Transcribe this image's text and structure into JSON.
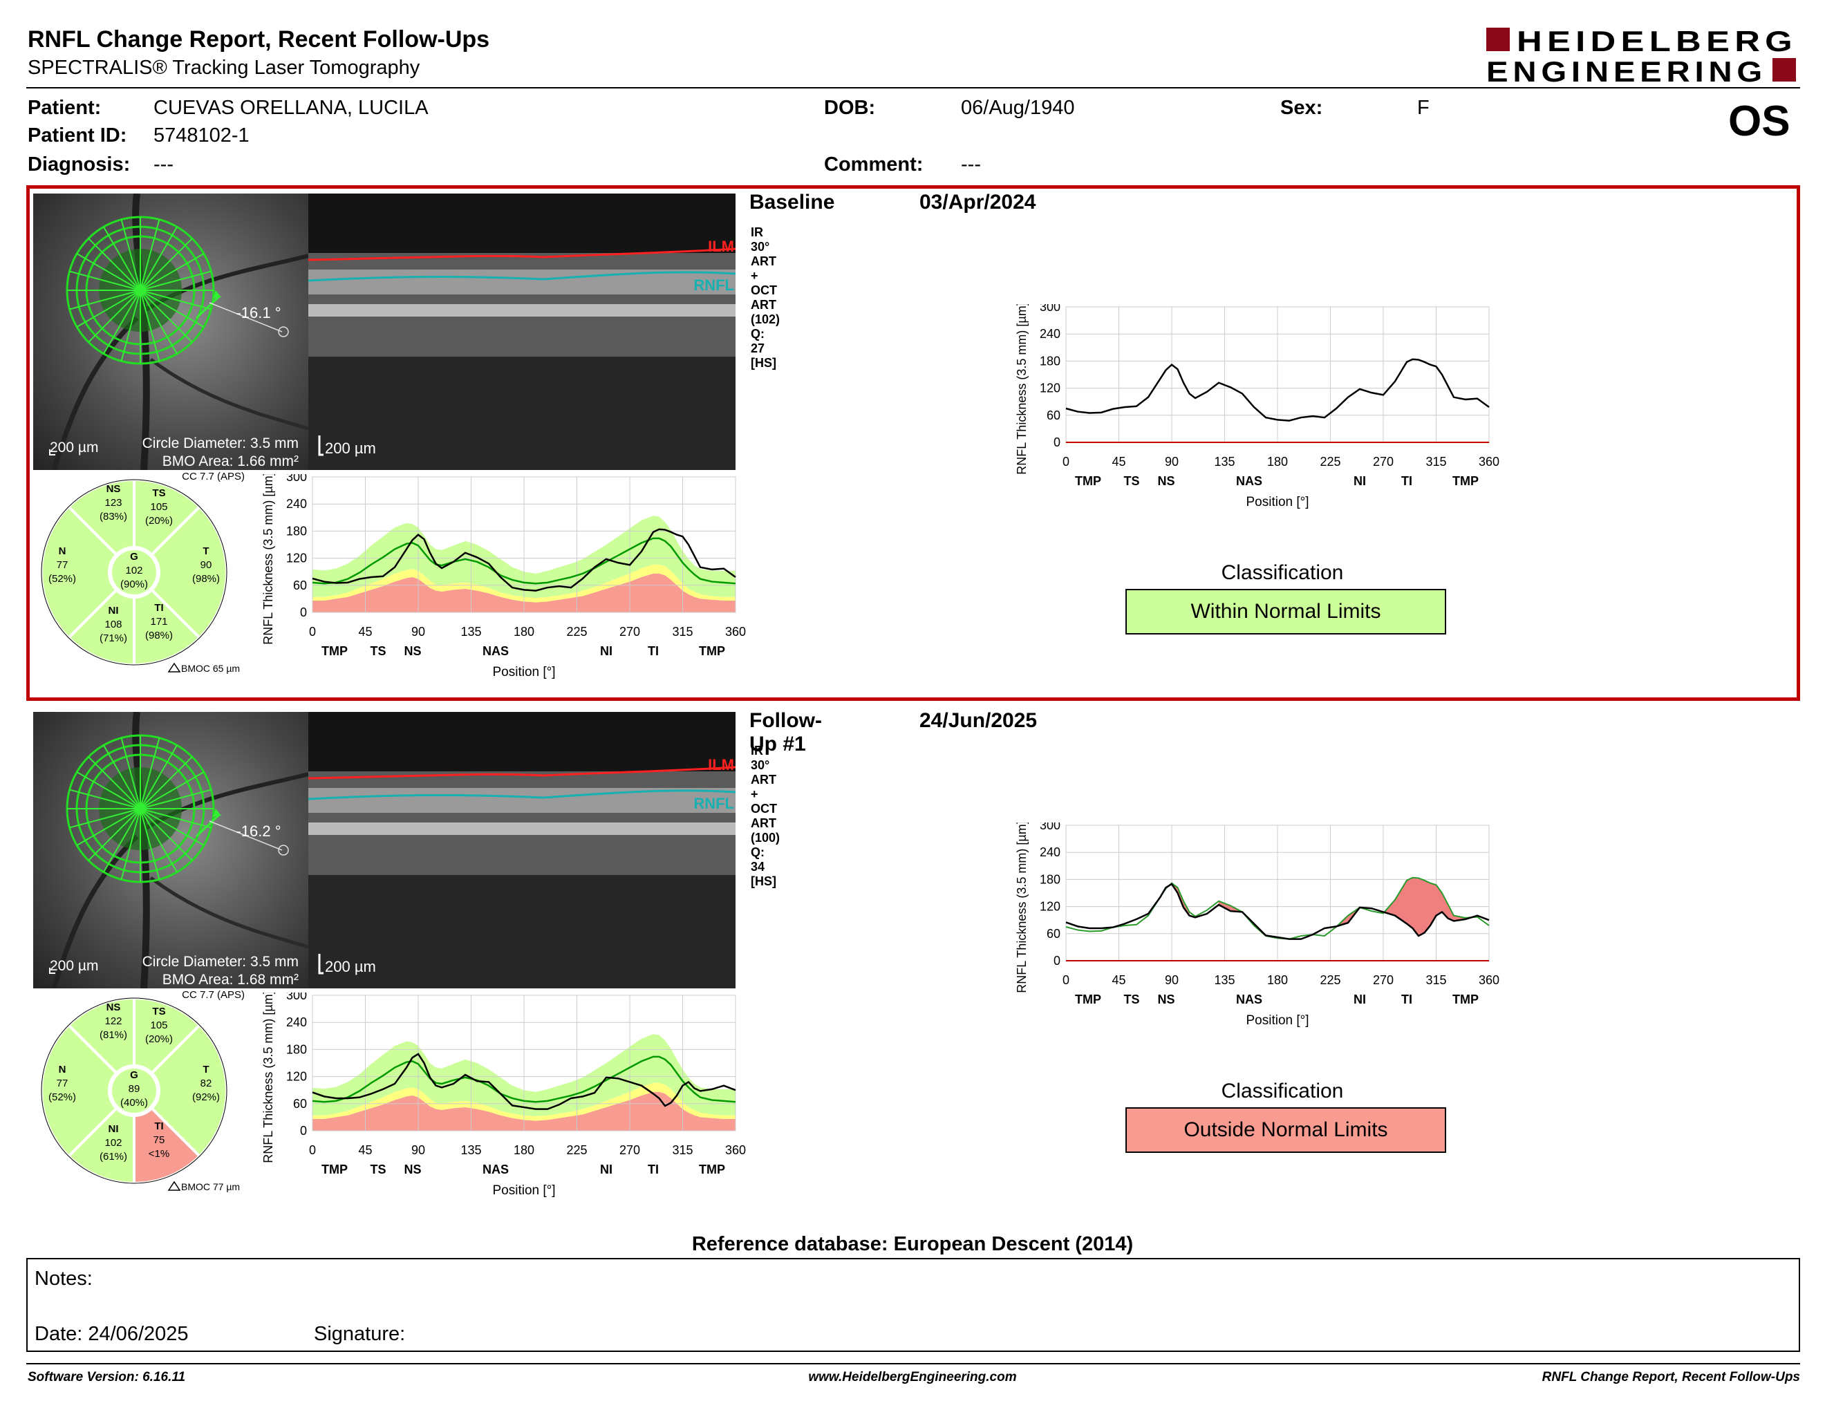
{
  "header": {
    "title": "RNFL Change Report, Recent Follow-Ups",
    "subtitle": "SPECTRALIS® Tracking Laser Tomography",
    "logo_line1": "HEIDELBERG",
    "logo_line2": "ENGINEERING"
  },
  "patient": {
    "name_label": "Patient:",
    "name": "CUEVAS ORELLANA, LUCILA",
    "id_label": "Patient ID:",
    "id": "5748102-1",
    "diagnosis_label": "Diagnosis:",
    "diagnosis": "---",
    "dob_label": "DOB:",
    "dob": "06/Aug/1940",
    "sex_label": "Sex:",
    "sex": "F",
    "comment_label": "Comment:",
    "comment": "---",
    "eye": "OS"
  },
  "exams": [
    {
      "title": "Baseline",
      "date": "03/Apr/2024",
      "acquisition": "IR 30° ART + OCT ART (102) Q: 27 [HS]",
      "fundus": {
        "scale": "200 µm",
        "angle": "-16.1 °",
        "circle_diameter": "Circle Diameter: 3.5 mm",
        "bmo_area": "BMO Area: 1.66 mm²"
      },
      "bscan": {
        "scale": "200 µm",
        "ilm": "ILM",
        "rnfl": "RNFL"
      },
      "sectors": {
        "cc": "CC 7.7 (APS)",
        "bmoc": "BMOC 65 µm",
        "NS": {
          "label": "NS",
          "value": "123",
          "pct": "(83%)",
          "status": "normal"
        },
        "TS": {
          "label": "TS",
          "value": "105",
          "pct": "(20%)",
          "status": "normal"
        },
        "N": {
          "label": "N",
          "value": "77",
          "pct": "(52%)",
          "status": "normal"
        },
        "G": {
          "label": "G",
          "value": "102",
          "pct": "(90%)",
          "status": "normal"
        },
        "T": {
          "label": "T",
          "value": "90",
          "pct": "(98%)",
          "status": "normal"
        },
        "NI": {
          "label": "NI",
          "value": "108",
          "pct": "(71%)",
          "status": "normal"
        },
        "TI": {
          "label": "TI",
          "value": "171",
          "pct": "(98%)",
          "status": "normal"
        }
      },
      "classification_title": "Classification",
      "classification": "Within Normal Limits",
      "classification_color": "#ccff99"
    },
    {
      "title": "Follow-Up #1",
      "date": "24/Jun/2025",
      "acquisition": "IR 30° ART + OCT ART (100) Q: 34 [HS]",
      "fundus": {
        "scale": "200 µm",
        "angle": "-16.2 °",
        "circle_diameter": "Circle Diameter: 3.5 mm",
        "bmo_area": "BMO Area: 1.68 mm²"
      },
      "bscan": {
        "scale": "200 µm",
        "ilm": "ILM",
        "rnfl": "RNFL"
      },
      "sectors": {
        "cc": "CC 7.7 (APS)",
        "bmoc": "BMOC 77 µm",
        "NS": {
          "label": "NS",
          "value": "122",
          "pct": "(81%)",
          "status": "normal"
        },
        "TS": {
          "label": "TS",
          "value": "105",
          "pct": "(20%)",
          "status": "normal"
        },
        "N": {
          "label": "N",
          "value": "77",
          "pct": "(52%)",
          "status": "normal"
        },
        "G": {
          "label": "G",
          "value": "89",
          "pct": "(40%)",
          "status": "normal"
        },
        "T": {
          "label": "T",
          "value": "82",
          "pct": "(92%)",
          "status": "normal"
        },
        "NI": {
          "label": "NI",
          "value": "102",
          "pct": "(61%)",
          "status": "normal"
        },
        "TI": {
          "label": "TI",
          "value": "75",
          "pct": "<1%",
          "status": "outside"
        }
      },
      "classification_title": "Classification",
      "classification": "Outside Normal Limits",
      "classification_color": "#f89b90"
    }
  ],
  "colors": {
    "normal": "#ccff99",
    "borderline": "#ffff80",
    "outside": "#f89b90",
    "frame": "#c00000",
    "measured": "#000000",
    "mean": "#009900"
  },
  "chart_data": [
    {
      "type": "line",
      "xlabel": "Position [°]",
      "ylabel": "RNFL Thickness (3.5 mm) [µm]",
      "xlim": [
        0,
        360
      ],
      "ylim": [
        0,
        300
      ],
      "xticks": [
        "0",
        "45",
        "90",
        "135",
        "180",
        "225",
        "270",
        "315",
        "360"
      ],
      "yticks": [
        "0",
        "60",
        "120",
        "180",
        "240",
        "300"
      ],
      "sector_labels": [
        "TMP",
        "TS",
        "NS",
        "NAS",
        "NI",
        "TI",
        "TMP"
      ],
      "x": [
        0,
        10,
        20,
        30,
        40,
        50,
        60,
        70,
        80,
        85,
        90,
        95,
        100,
        105,
        110,
        120,
        130,
        140,
        150,
        160,
        170,
        180,
        190,
        200,
        210,
        220,
        230,
        240,
        250,
        260,
        270,
        280,
        290,
        295,
        300,
        305,
        310,
        315,
        320,
        325,
        330,
        340,
        350,
        360
      ],
      "series": [
        {
          "values": [
            75,
            68,
            65,
            66,
            74,
            78,
            80,
            100,
            140,
            160,
            172,
            162,
            132,
            108,
            98,
            112,
            132,
            122,
            108,
            78,
            55,
            50,
            48,
            55,
            58,
            55,
            75,
            100,
            118,
            110,
            105,
            135,
            178,
            184,
            183,
            178,
            172,
            168,
            150,
            125,
            100,
            95,
            97,
            78
          ]
        }
      ],
      "normal_band": {
        "lower": [
          44,
          44,
          48,
          55,
          65,
          78,
          92,
          110,
          125,
          130,
          125,
          110,
          95,
          86,
          84,
          88,
          92,
          86,
          76,
          62,
          54,
          50,
          48,
          50,
          55,
          58,
          64,
          76,
          90,
          104,
          118,
          134,
          148,
          152,
          148,
          138,
          120,
          100,
          84,
          72,
          60,
          54,
          50,
          48
        ],
        "upper": [
          95,
          93,
          97,
          108,
          125,
          148,
          168,
          188,
          198,
          196,
          188,
          170,
          150,
          140,
          138,
          148,
          158,
          150,
          136,
          118,
          100,
          90,
          86,
          92,
          100,
          108,
          118,
          134,
          150,
          168,
          186,
          204,
          214,
          212,
          200,
          182,
          158,
          136,
          118,
          104,
          96,
          92,
          92,
          92
        ]
      },
      "mean": [
        66,
        64,
        66,
        74,
        88,
        106,
        122,
        140,
        152,
        154,
        148,
        132,
        116,
        106,
        104,
        112,
        118,
        112,
        100,
        82,
        72,
        66,
        64,
        66,
        72,
        78,
        86,
        98,
        112,
        126,
        140,
        154,
        164,
        164,
        158,
        146,
        128,
        110,
        96,
        84,
        74,
        68,
        66,
        64
      ],
      "borderline_upper": [
        34,
        34,
        38,
        44,
        54,
        64,
        74,
        86,
        94,
        96,
        92,
        82,
        70,
        62,
        60,
        64,
        66,
        62,
        54,
        44,
        38,
        34,
        32,
        34,
        38,
        42,
        48,
        56,
        66,
        76,
        86,
        98,
        106,
        106,
        102,
        92,
        78,
        64,
        52,
        46,
        40,
        36,
        34,
        34
      ],
      "outside_upper": [
        26,
        26,
        30,
        34,
        42,
        50,
        58,
        68,
        76,
        78,
        74,
        64,
        54,
        48,
        46,
        50,
        52,
        48,
        42,
        34,
        28,
        24,
        22,
        24,
        28,
        32,
        36,
        44,
        52,
        60,
        68,
        78,
        86,
        86,
        82,
        72,
        60,
        48,
        40,
        34,
        30,
        28,
        26,
        26
      ]
    },
    {
      "type": "line",
      "xlabel": "Position [°]",
      "ylabel": "RNFL Thickness (3.5 mm) [µm]",
      "xlim": [
        0,
        360
      ],
      "ylim": [
        0,
        300
      ],
      "xticks": [
        "0",
        "45",
        "90",
        "135",
        "180",
        "225",
        "270",
        "315",
        "360"
      ],
      "yticks": [
        "0",
        "60",
        "120",
        "180",
        "240",
        "300"
      ],
      "sector_labels": [
        "TMP",
        "TS",
        "NS",
        "NAS",
        "NI",
        "TI",
        "TMP"
      ],
      "x": [
        0,
        10,
        20,
        30,
        40,
        50,
        60,
        70,
        80,
        85,
        90,
        95,
        100,
        105,
        110,
        120,
        130,
        140,
        150,
        160,
        170,
        180,
        190,
        200,
        210,
        220,
        230,
        240,
        250,
        260,
        270,
        280,
        290,
        295,
        300,
        305,
        310,
        315,
        320,
        325,
        330,
        340,
        350,
        360
      ],
      "series": [
        {
          "values": [
            85,
            76,
            72,
            72,
            74,
            82,
            92,
            104,
            140,
            162,
            170,
            150,
            118,
            100,
            96,
            104,
            124,
            110,
            108,
            82,
            56,
            52,
            48,
            48,
            58,
            72,
            76,
            84,
            118,
            116,
            108,
            100,
            82,
            72,
            55,
            62,
            78,
            100,
            108,
            94,
            88,
            92,
            100,
            90
          ]
        }
      ],
      "normal_band": {
        "lower": [
          44,
          44,
          48,
          55,
          65,
          78,
          92,
          110,
          125,
          130,
          125,
          110,
          95,
          86,
          84,
          88,
          92,
          86,
          76,
          62,
          54,
          50,
          48,
          50,
          55,
          58,
          64,
          76,
          90,
          104,
          118,
          134,
          148,
          152,
          148,
          138,
          120,
          100,
          84,
          72,
          60,
          54,
          50,
          48
        ],
        "upper": [
          95,
          93,
          97,
          108,
          125,
          148,
          168,
          188,
          198,
          196,
          188,
          170,
          150,
          140,
          138,
          148,
          158,
          150,
          136,
          118,
          100,
          90,
          86,
          92,
          100,
          108,
          118,
          134,
          150,
          168,
          186,
          204,
          214,
          212,
          200,
          182,
          158,
          136,
          118,
          104,
          96,
          92,
          92,
          92
        ]
      },
      "mean": [
        66,
        64,
        66,
        74,
        88,
        106,
        122,
        140,
        152,
        154,
        148,
        132,
        116,
        106,
        104,
        112,
        118,
        112,
        100,
        82,
        72,
        66,
        64,
        66,
        72,
        78,
        86,
        98,
        112,
        126,
        140,
        154,
        164,
        164,
        158,
        146,
        128,
        110,
        96,
        84,
        74,
        68,
        66,
        64
      ],
      "borderline_upper": [
        34,
        34,
        38,
        44,
        54,
        64,
        74,
        86,
        94,
        96,
        92,
        82,
        70,
        62,
        60,
        64,
        66,
        62,
        54,
        44,
        38,
        34,
        32,
        34,
        38,
        42,
        48,
        56,
        66,
        76,
        86,
        98,
        106,
        106,
        102,
        92,
        78,
        64,
        52,
        46,
        40,
        36,
        34,
        34
      ],
      "outside_upper": [
        26,
        26,
        30,
        34,
        42,
        50,
        58,
        68,
        76,
        78,
        74,
        64,
        54,
        48,
        46,
        50,
        52,
        48,
        42,
        34,
        28,
        24,
        22,
        24,
        28,
        32,
        36,
        44,
        52,
        60,
        68,
        78,
        86,
        86,
        82,
        72,
        60,
        48,
        40,
        34,
        30,
        28,
        26,
        26
      ]
    },
    {
      "type": "line",
      "xlabel": "Position [°]",
      "ylabel": "RNFL Thickness (3.5 mm) [µm]",
      "xlim": [
        0,
        360
      ],
      "ylim": [
        0,
        300
      ],
      "xticks": [
        "0",
        "45",
        "90",
        "135",
        "180",
        "225",
        "270",
        "315",
        "360"
      ],
      "yticks": [
        "0",
        "60",
        "120",
        "180",
        "240",
        "300"
      ],
      "sector_labels": [
        "TMP",
        "TS",
        "NS",
        "NAS",
        "NI",
        "TI",
        "TMP"
      ],
      "x": [
        0,
        10,
        20,
        30,
        40,
        50,
        60,
        70,
        80,
        85,
        90,
        95,
        100,
        105,
        110,
        120,
        130,
        140,
        150,
        160,
        170,
        180,
        190,
        200,
        210,
        220,
        230,
        240,
        250,
        260,
        270,
        280,
        290,
        295,
        300,
        305,
        310,
        315,
        320,
        325,
        330,
        340,
        350,
        360
      ],
      "series": [
        {
          "name": "Baseline",
          "values": [
            75,
            68,
            65,
            66,
            74,
            78,
            80,
            100,
            140,
            160,
            172,
            162,
            132,
            108,
            98,
            112,
            132,
            122,
            108,
            78,
            55,
            50,
            48,
            55,
            58,
            55,
            75,
            100,
            118,
            110,
            105,
            135,
            178,
            184,
            183,
            178,
            172,
            168,
            150,
            125,
            100,
            95,
            97,
            78
          ]
        }
      ]
    },
    {
      "type": "line",
      "xlabel": "Position [°]",
      "ylabel": "RNFL Thickness (3.5 mm) [µm]",
      "xlim": [
        0,
        360
      ],
      "ylim": [
        0,
        300
      ],
      "xticks": [
        "0",
        "45",
        "90",
        "135",
        "180",
        "225",
        "270",
        "315",
        "360"
      ],
      "yticks": [
        "0",
        "60",
        "120",
        "180",
        "240",
        "300"
      ],
      "sector_labels": [
        "TMP",
        "TS",
        "NS",
        "NAS",
        "NI",
        "TI",
        "TMP"
      ],
      "x": [
        0,
        10,
        20,
        30,
        40,
        50,
        60,
        70,
        80,
        85,
        90,
        95,
        100,
        105,
        110,
        120,
        130,
        140,
        150,
        160,
        170,
        180,
        190,
        200,
        210,
        220,
        230,
        240,
        250,
        260,
        270,
        280,
        290,
        295,
        300,
        305,
        310,
        315,
        320,
        325,
        330,
        340,
        350,
        360
      ],
      "series": [
        {
          "name": "Baseline",
          "values": [
            75,
            68,
            65,
            66,
            74,
            78,
            80,
            100,
            140,
            160,
            172,
            162,
            132,
            108,
            98,
            112,
            132,
            122,
            108,
            78,
            55,
            50,
            48,
            55,
            58,
            55,
            75,
            100,
            118,
            110,
            105,
            135,
            178,
            184,
            183,
            178,
            172,
            168,
            150,
            125,
            100,
            95,
            97,
            78
          ]
        },
        {
          "name": "Follow-Up #1",
          "values": [
            85,
            76,
            72,
            72,
            74,
            82,
            92,
            104,
            140,
            162,
            170,
            150,
            118,
            100,
            96,
            104,
            124,
            110,
            108,
            82,
            56,
            52,
            48,
            48,
            58,
            72,
            76,
            84,
            118,
            116,
            108,
            100,
            82,
            72,
            55,
            62,
            78,
            100,
            108,
            94,
            88,
            92,
            100,
            90
          ]
        }
      ]
    }
  ],
  "reference_db": "Reference database: European Descent (2014)",
  "notes": {
    "notes_label": "Notes:",
    "date_label": "Date: 24/06/2025",
    "signature_label": "Signature:"
  },
  "footer": {
    "left": "Software Version: 6.16.11",
    "center": "www.HeidelbergEngineering.com",
    "right": "RNFL Change Report, Recent Follow-Ups"
  }
}
